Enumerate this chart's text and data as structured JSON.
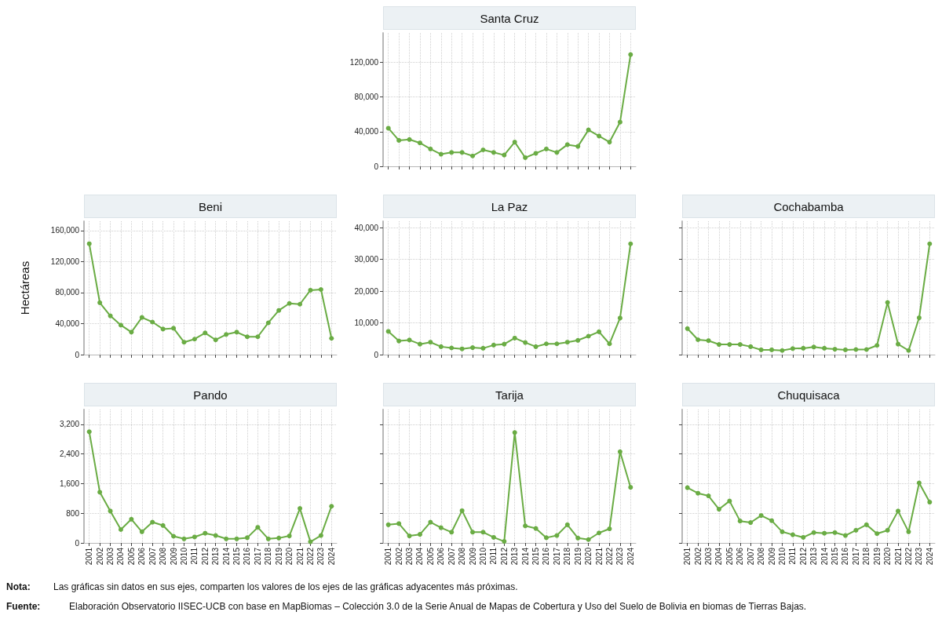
{
  "chart_data": [
    {
      "type": "line",
      "title": "Santa Cruz",
      "categories": [
        "2001",
        "2002",
        "2003",
        "2004",
        "2005",
        "2006",
        "2007",
        "2008",
        "2009",
        "2010",
        "2011",
        "2012",
        "2013",
        "2014",
        "2015",
        "2016",
        "2017",
        "2018",
        "2019",
        "2020",
        "2021",
        "2022",
        "2023",
        "2024"
      ],
      "values": [
        44000,
        30000,
        31000,
        27000,
        20000,
        14000,
        16000,
        16000,
        12000,
        19000,
        16000,
        13000,
        28000,
        10000,
        15000,
        20000,
        16000,
        25000,
        23000,
        42000,
        35000,
        28000,
        51000,
        129000
      ],
      "color": "#6aac44",
      "marker": "circle",
      "grid": true,
      "tick_labels": "y",
      "ylim": [
        0,
        154000
      ],
      "yticks": [
        {
          "value": 0,
          "label": "0"
        },
        {
          "value": 40000,
          "label": "40,000"
        },
        {
          "value": 80000,
          "label": "80,000"
        },
        {
          "value": 120000,
          "label": "120,000"
        }
      ]
    },
    {
      "type": "line",
      "title": "Beni",
      "ylabel": "Hectáreas",
      "categories": [
        "2001",
        "2002",
        "2003",
        "2004",
        "2005",
        "2006",
        "2007",
        "2008",
        "2009",
        "2010",
        "2011",
        "2012",
        "2013",
        "2014",
        "2015",
        "2016",
        "2017",
        "2018",
        "2019",
        "2020",
        "2021",
        "2022",
        "2023",
        "2024"
      ],
      "values": [
        143000,
        67000,
        50000,
        38000,
        29000,
        48000,
        42000,
        33000,
        34000,
        16000,
        20000,
        28000,
        19000,
        26000,
        29000,
        23000,
        23000,
        41000,
        57000,
        66000,
        65000,
        83000,
        84000,
        21000
      ],
      "color": "#6aac44",
      "marker": "circle",
      "grid": true,
      "tick_labels": "y",
      "ylim": [
        0,
        172000
      ],
      "yticks": [
        {
          "value": 0,
          "label": "0"
        },
        {
          "value": 40000,
          "label": "40,000"
        },
        {
          "value": 80000,
          "label": "80,000"
        },
        {
          "value": 120000,
          "label": "120,000"
        },
        {
          "value": 160000,
          "label": "160,000"
        }
      ]
    },
    {
      "type": "line",
      "title": "La Paz",
      "categories": [
        "2001",
        "2002",
        "2003",
        "2004",
        "2005",
        "2006",
        "2007",
        "2008",
        "2009",
        "2010",
        "2011",
        "2012",
        "2013",
        "2014",
        "2015",
        "2016",
        "2017",
        "2018",
        "2019",
        "2020",
        "2021",
        "2022",
        "2023",
        "2024"
      ],
      "values": [
        7300,
        4300,
        4600,
        3300,
        3900,
        2500,
        2100,
        1800,
        2200,
        2000,
        3000,
        3300,
        5200,
        3800,
        2500,
        3400,
        3400,
        3900,
        4500,
        5800,
        7200,
        3400,
        11500,
        34900
      ],
      "color": "#6aac44",
      "marker": "circle",
      "grid": true,
      "tick_labels": "y",
      "ylim": [
        0,
        42000
      ],
      "yticks": [
        {
          "value": 0,
          "label": "0"
        },
        {
          "value": 10000,
          "label": "10,000"
        },
        {
          "value": 20000,
          "label": "20,000"
        },
        {
          "value": 30000,
          "label": "30,000"
        },
        {
          "value": 40000,
          "label": "40,000"
        }
      ]
    },
    {
      "type": "line",
      "title": "Cochabamba",
      "categories": [
        "2001",
        "2002",
        "2003",
        "2004",
        "2005",
        "2006",
        "2007",
        "2008",
        "2009",
        "2010",
        "2011",
        "2012",
        "2013",
        "2014",
        "2015",
        "2016",
        "2017",
        "2018",
        "2019",
        "2020",
        "2021",
        "2022",
        "2023",
        "2024"
      ],
      "values": [
        8200,
        4700,
        4400,
        3200,
        3200,
        3200,
        2500,
        1500,
        1500,
        1300,
        1900,
        2000,
        2400,
        2000,
        1700,
        1500,
        1600,
        1600,
        2900,
        16400,
        3300,
        1300,
        11600,
        34900
      ],
      "color": "#6aac44",
      "marker": "circle",
      "grid": true,
      "tick_labels": false,
      "ylim": [
        0,
        42000
      ],
      "yticks": [
        {
          "value": 0,
          "label": null
        },
        {
          "value": 10000,
          "label": null
        },
        {
          "value": 20000,
          "label": null
        },
        {
          "value": 30000,
          "label": null
        },
        {
          "value": 40000,
          "label": null
        }
      ]
    },
    {
      "type": "line",
      "title": "Pando",
      "categories": [
        "2001",
        "2002",
        "2003",
        "2004",
        "2005",
        "2006",
        "2007",
        "2008",
        "2009",
        "2010",
        "2011",
        "2012",
        "2013",
        "2014",
        "2015",
        "2016",
        "2017",
        "2018",
        "2019",
        "2020",
        "2021",
        "2022",
        "2023",
        "2024"
      ],
      "values": [
        3000,
        1370,
        860,
        360,
        640,
        300,
        560,
        470,
        180,
        110,
        160,
        260,
        200,
        110,
        110,
        140,
        420,
        110,
        130,
        190,
        930,
        30,
        200,
        990
      ],
      "color": "#6aac44",
      "marker": "circle",
      "grid": true,
      "ylim": [
        0,
        3600
      ],
      "yticks": [
        {
          "value": 0,
          "label": "0"
        },
        800,
        {
          "value": 1600,
          "label": "1,600"
        },
        {
          "value": 2400,
          "label": "2,400"
        },
        {
          "value": 3200,
          "label": "3,200"
        }
      ]
    },
    {
      "type": "line",
      "title": "Tarija",
      "categories": [
        "2001",
        "2002",
        "2003",
        "2004",
        "2005",
        "2006",
        "2007",
        "2008",
        "2009",
        "2010",
        "2011",
        "2012",
        "2013",
        "2014",
        "2015",
        "2016",
        "2017",
        "2018",
        "2019",
        "2020",
        "2021",
        "2022",
        "2023",
        "2024"
      ],
      "values": [
        490,
        520,
        190,
        230,
        560,
        410,
        290,
        870,
        290,
        290,
        150,
        40,
        2980,
        460,
        390,
        140,
        200,
        490,
        130,
        90,
        270,
        380,
        2460,
        1500
      ],
      "color": "#6aac44",
      "marker": "circle",
      "grid": true,
      "tick_labels": "x",
      "ylim": [
        0,
        3600
      ],
      "yticks": [
        {
          "value": 0,
          "label": null
        },
        {
          "value": 800,
          "label": null
        },
        {
          "value": 1600,
          "label": null
        },
        {
          "value": 2400,
          "label": null
        },
        {
          "value": 3200,
          "label": null
        }
      ]
    },
    {
      "type": "line",
      "title": "Chuquisaca",
      "categories": [
        "2001",
        "2002",
        "2003",
        "2004",
        "2005",
        "2006",
        "2007",
        "2008",
        "2009",
        "2010",
        "2011",
        "2012",
        "2013",
        "2014",
        "2015",
        "2016",
        "2017",
        "2018",
        "2019",
        "2020",
        "2021",
        "2022",
        "2023",
        "2024"
      ],
      "values": [
        1490,
        1340,
        1270,
        910,
        1130,
        590,
        550,
        740,
        600,
        300,
        220,
        150,
        280,
        260,
        280,
        200,
        340,
        490,
        250,
        340,
        860,
        300,
        1620,
        1100
      ],
      "color": "#6aac44",
      "marker": "circle",
      "grid": true,
      "tick_labels": "x",
      "ylim": [
        0,
        3600
      ],
      "yticks": [
        {
          "value": 0,
          "label": null
        },
        {
          "value": 800,
          "label": null
        },
        {
          "value": 1600,
          "label": null
        },
        {
          "value": 2400,
          "label": null
        },
        {
          "value": 3200,
          "label": null
        }
      ],
      "annotations": [
        "Nota:",
        "Las gráficas sin datos en sus ejes, comparten los valores de los ejes de las gráficas adyacentes más próximas.",
        "Fuente:",
        "Elaboración Observatorio IISEC-UCB con base en MapBiomas – Colección 3.0 de la Serie Anual de Mapas de Cobertura y Uso del Suelo de Bolivia en biomas de Tierras Bajas."
      ]
    }
  ]
}
